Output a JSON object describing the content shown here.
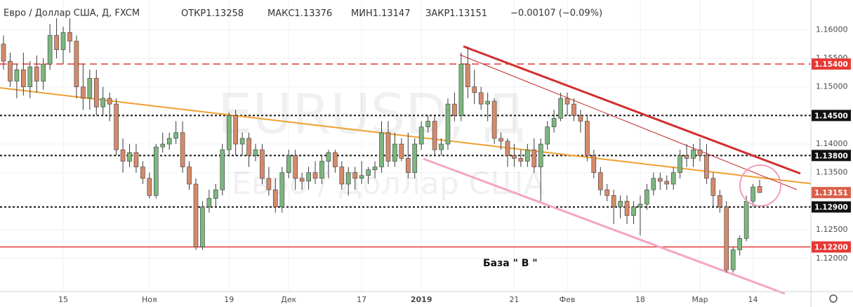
{
  "chart_data": {
    "type": "candlestick",
    "header": {
      "symbol": "Евро / Доллар США, Д, FXCM",
      "fields": [
        {
          "label": "ОТКР",
          "value": 1.13258
        },
        {
          "label": "МАКС",
          "value": 1.13376
        },
        {
          "label": "МИН",
          "value": 1.13147
        },
        {
          "label": "ЗАКР",
          "value": 1.13151
        }
      ],
      "change": "−0.00107 (−0.09%)"
    },
    "watermark": "EURUSD, Д",
    "watermark_subtitle": "Евро / Доллар США",
    "annotation": "База  \" В \"",
    "up_color": "#7cb77e",
    "down_color": "#d68a6a",
    "wick_color": "#3a3a3a",
    "ylim": [
      1.1142,
      1.1652
    ],
    "yticks": [
      {
        "value": 1.16,
        "label": "1.16000"
      },
      {
        "value": 1.155,
        "label": "1.15500"
      },
      {
        "value": 1.15,
        "label": "1.15000"
      },
      {
        "value": 1.14,
        "label": "1.14000"
      },
      {
        "value": 1.135,
        "label": "1.13500"
      },
      {
        "value": 1.125,
        "label": "1.12500"
      },
      {
        "value": 1.12,
        "label": "1.12000"
      }
    ],
    "grid": true,
    "levels": [
      {
        "value": 1.154,
        "label": "1.15400",
        "color": "#e53935",
        "line": "dashed"
      },
      {
        "value": 1.145,
        "label": "1.14500",
        "color": "#111111",
        "line": "dotted"
      },
      {
        "value": 1.138,
        "label": "1.13800",
        "color": "#111111",
        "line": "dotted"
      },
      {
        "value": 1.13151,
        "label": "1.13151",
        "color": "#d9604a",
        "line": "none"
      },
      {
        "value": 1.129,
        "label": "1.12900",
        "color": "#111111",
        "line": "dotted"
      },
      {
        "value": 1.122,
        "label": "1.12200",
        "color": "#e53935",
        "line": "solid"
      }
    ],
    "categories": [
      null,
      null,
      null,
      null,
      null,
      null,
      null,
      null,
      null,
      "15",
      null,
      null,
      null,
      null,
      null,
      null,
      null,
      null,
      null,
      null,
      null,
      null,
      "Ноя",
      null,
      null,
      null,
      null,
      null,
      null,
      null,
      null,
      null,
      null,
      null,
      "19",
      null,
      null,
      null,
      null,
      null,
      null,
      null,
      null,
      "Дек",
      null,
      null,
      null,
      null,
      null,
      null,
      null,
      null,
      null,
      null,
      "17",
      null,
      null,
      null,
      null,
      null,
      null,
      null,
      null,
      "2019",
      null,
      null,
      null,
      null,
      null,
      null,
      null,
      null,
      null,
      null,
      null,
      null,
      null,
      "21",
      null,
      null,
      null,
      null,
      null,
      null,
      null,
      "Фев",
      null,
      null,
      null,
      null,
      null,
      null,
      null,
      null,
      null,
      null,
      "18",
      null,
      null,
      null,
      null,
      null,
      null,
      null,
      null,
      "Мар",
      null,
      null,
      null,
      null,
      null,
      null,
      null,
      "14",
      null
    ],
    "values": [
      [
        1.1575,
        1.159,
        1.153,
        1.1545
      ],
      [
        1.1545,
        1.156,
        1.15,
        1.151
      ],
      [
        1.151,
        1.154,
        1.148,
        1.153
      ],
      [
        1.153,
        1.156,
        1.1485,
        1.15
      ],
      [
        1.15,
        1.1545,
        1.148,
        1.1535
      ],
      [
        1.1535,
        1.1555,
        1.149,
        1.151
      ],
      [
        1.151,
        1.155,
        1.1495,
        1.154
      ],
      [
        1.154,
        1.161,
        1.153,
        1.159
      ],
      [
        1.159,
        1.162,
        1.155,
        1.1565
      ],
      [
        1.1565,
        1.1605,
        1.154,
        1.1595
      ],
      [
        1.1595,
        1.162,
        1.156,
        1.158
      ],
      [
        1.158,
        1.159,
        1.148,
        1.15
      ],
      [
        1.15,
        1.154,
        1.146,
        1.148
      ],
      [
        1.148,
        1.153,
        1.146,
        1.1515
      ],
      [
        1.1515,
        1.153,
        1.145,
        1.1465
      ],
      [
        1.1465,
        1.15,
        1.145,
        1.148
      ],
      [
        1.148,
        1.149,
        1.144,
        1.147
      ],
      [
        1.147,
        1.148,
        1.138,
        1.139
      ],
      [
        1.139,
        1.141,
        1.135,
        1.137
      ],
      [
        1.137,
        1.14,
        1.136,
        1.1385
      ],
      [
        1.1385,
        1.14,
        1.135,
        1.136
      ],
      [
        1.136,
        1.137,
        1.133,
        1.134
      ],
      [
        1.134,
        1.135,
        1.1305,
        1.131
      ],
      [
        1.131,
        1.14,
        1.1305,
        1.1395
      ],
      [
        1.1395,
        1.142,
        1.1385,
        1.14
      ],
      [
        1.14,
        1.142,
        1.139,
        1.141
      ],
      [
        1.141,
        1.144,
        1.14,
        1.142
      ],
      [
        1.142,
        1.144,
        1.135,
        1.136
      ],
      [
        1.136,
        1.137,
        1.132,
        1.133
      ],
      [
        1.133,
        1.134,
        1.1215,
        1.122
      ],
      [
        1.122,
        1.13,
        1.1215,
        1.129
      ],
      [
        1.129,
        1.132,
        1.128,
        1.1305
      ],
      [
        1.1305,
        1.133,
        1.129,
        1.132
      ],
      [
        1.132,
        1.14,
        1.131,
        1.139
      ],
      [
        1.139,
        1.1455,
        1.138,
        1.145
      ],
      [
        1.145,
        1.146,
        1.138,
        1.14
      ],
      [
        1.14,
        1.142,
        1.138,
        1.141
      ],
      [
        1.141,
        1.142,
        1.136,
        1.138
      ],
      [
        1.138,
        1.14,
        1.137,
        1.139
      ],
      [
        1.139,
        1.14,
        1.133,
        1.134
      ],
      [
        1.134,
        1.136,
        1.131,
        1.132
      ],
      [
        1.132,
        1.134,
        1.128,
        1.129
      ],
      [
        1.129,
        1.136,
        1.128,
        1.135
      ],
      [
        1.135,
        1.139,
        1.134,
        1.138
      ],
      [
        1.138,
        1.139,
        1.132,
        1.134
      ],
      [
        1.134,
        1.135,
        1.132,
        1.1335
      ],
      [
        1.1335,
        1.136,
        1.132,
        1.135
      ],
      [
        1.135,
        1.137,
        1.133,
        1.134
      ],
      [
        1.134,
        1.138,
        1.133,
        1.137
      ],
      [
        1.137,
        1.139,
        1.134,
        1.1385
      ],
      [
        1.1385,
        1.139,
        1.135,
        1.136
      ],
      [
        1.136,
        1.137,
        1.132,
        1.133
      ],
      [
        1.133,
        1.136,
        1.131,
        1.135
      ],
      [
        1.135,
        1.136,
        1.132,
        1.134
      ],
      [
        1.134,
        1.137,
        1.133,
        1.1345
      ],
      [
        1.1345,
        1.136,
        1.133,
        1.1355
      ],
      [
        1.1355,
        1.137,
        1.134,
        1.136
      ],
      [
        1.136,
        1.144,
        1.135,
        1.142
      ],
      [
        1.142,
        1.144,
        1.136,
        1.137
      ],
      [
        1.137,
        1.142,
        1.136,
        1.14
      ],
      [
        1.14,
        1.141,
        1.137,
        1.1375
      ],
      [
        1.1375,
        1.142,
        1.134,
        1.135
      ],
      [
        1.135,
        1.141,
        1.134,
        1.14
      ],
      [
        1.14,
        1.144,
        1.139,
        1.143
      ],
      [
        1.143,
        1.145,
        1.142,
        1.144
      ],
      [
        1.144,
        1.145,
        1.138,
        1.139
      ],
      [
        1.139,
        1.141,
        1.138,
        1.14
      ],
      [
        1.14,
        1.148,
        1.139,
        1.147
      ],
      [
        1.147,
        1.149,
        1.144,
        1.145
      ],
      [
        1.145,
        1.156,
        1.144,
        1.154
      ],
      [
        1.154,
        1.157,
        1.148,
        1.15
      ],
      [
        1.15,
        1.153,
        1.147,
        1.149
      ],
      [
        1.149,
        1.15,
        1.146,
        1.147
      ],
      [
        1.147,
        1.149,
        1.144,
        1.1475
      ],
      [
        1.1475,
        1.148,
        1.14,
        1.141
      ],
      [
        1.141,
        1.142,
        1.139,
        1.1405
      ],
      [
        1.1405,
        1.141,
        1.136,
        1.138
      ],
      [
        1.138,
        1.14,
        1.136,
        1.1375
      ],
      [
        1.1375,
        1.139,
        1.136,
        1.137
      ],
      [
        1.137,
        1.14,
        1.136,
        1.139
      ],
      [
        1.139,
        1.141,
        1.135,
        1.136
      ],
      [
        1.136,
        1.141,
        1.13,
        1.14
      ],
      [
        1.14,
        1.144,
        1.139,
        1.143
      ],
      [
        1.143,
        1.146,
        1.142,
        1.1445
      ],
      [
        1.1445,
        1.149,
        1.144,
        1.148
      ],
      [
        1.148,
        1.149,
        1.145,
        1.147
      ],
      [
        1.147,
        1.148,
        1.144,
        1.145
      ],
      [
        1.145,
        1.146,
        1.142,
        1.144
      ],
      [
        1.144,
        1.145,
        1.137,
        1.138
      ],
      [
        1.138,
        1.139,
        1.134,
        1.135
      ],
      [
        1.135,
        1.136,
        1.131,
        1.132
      ],
      [
        1.132,
        1.133,
        1.13,
        1.131
      ],
      [
        1.131,
        1.132,
        1.126,
        1.129
      ],
      [
        1.129,
        1.131,
        1.127,
        1.13
      ],
      [
        1.13,
        1.131,
        1.126,
        1.1275
      ],
      [
        1.1275,
        1.13,
        1.126,
        1.129
      ],
      [
        1.129,
        1.131,
        1.124,
        1.1295
      ],
      [
        1.1295,
        1.133,
        1.1285,
        1.132
      ],
      [
        1.132,
        1.135,
        1.131,
        1.134
      ],
      [
        1.134,
        1.135,
        1.132,
        1.1335
      ],
      [
        1.1335,
        1.1345,
        1.132,
        1.133
      ],
      [
        1.133,
        1.136,
        1.132,
        1.135
      ],
      [
        1.135,
        1.139,
        1.134,
        1.138
      ],
      [
        1.138,
        1.14,
        1.136,
        1.1375
      ],
      [
        1.1375,
        1.14,
        1.136,
        1.139
      ],
      [
        1.139,
        1.141,
        1.137,
        1.138
      ],
      [
        1.138,
        1.14,
        1.133,
        1.134
      ],
      [
        1.134,
        1.135,
        1.129,
        1.131
      ],
      [
        1.131,
        1.132,
        1.128,
        1.129
      ],
      [
        1.129,
        1.13,
        1.1175,
        1.118
      ],
      [
        1.118,
        1.122,
        1.1175,
        1.1215
      ],
      [
        1.1215,
        1.124,
        1.1205,
        1.1235
      ],
      [
        1.1235,
        1.131,
        1.123,
        1.13
      ],
      [
        1.13,
        1.133,
        1.129,
        1.1325
      ],
      [
        1.13258,
        1.13376,
        1.13147,
        1.13151
      ]
    ]
  }
}
